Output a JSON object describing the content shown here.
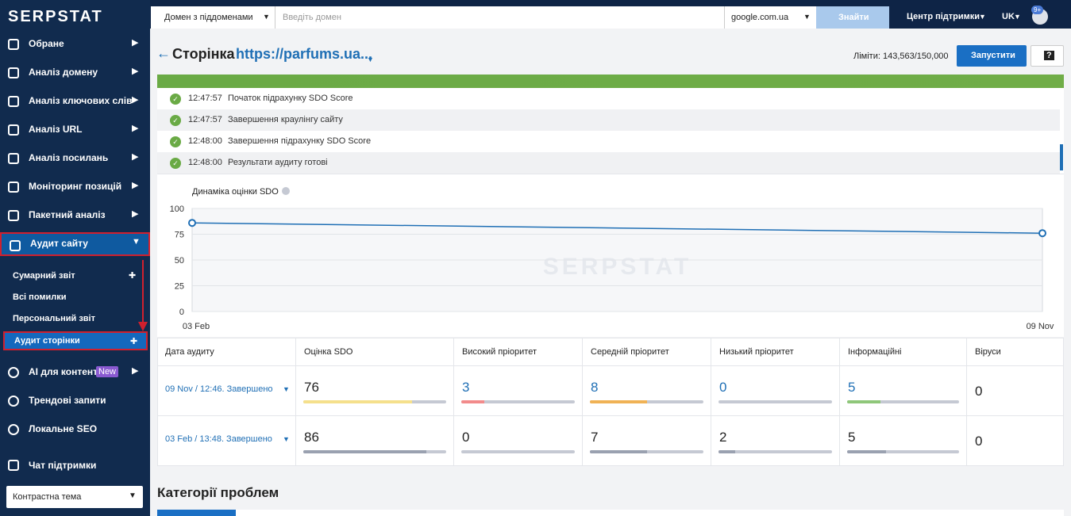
{
  "sidebar": {
    "logo": "SERPSTAT",
    "menu": [
      "Обране",
      "Аналіз домену",
      "Аналіз ключових слів",
      "Аналіз URL",
      "Аналіз посилань",
      "Моніторинг позицій",
      "Пакетний аналіз",
      "Аудит сайту"
    ],
    "submenu": [
      "Сумарний звіт",
      "Всі помилки",
      "Персональний звіт",
      "Аудит сторінки"
    ],
    "menu2": [
      "AI для контенту",
      "Трендові запити",
      "Локальне SEO"
    ],
    "new_badge": "New",
    "support_chat": "Чат підтримки",
    "theme": "Контрастна тема"
  },
  "topbar": {
    "domain_select": "Домен з піддоменами",
    "search_placeholder": "Введіть домен",
    "engine": "google.com.ua",
    "search_button": "Знайти",
    "support": "Центр підтримки",
    "lang": "UK",
    "badge": "9+"
  },
  "page": {
    "title": "Сторінка",
    "url": "https://parfums.ua...",
    "limits": "Ліміти: 143,563/150,000",
    "run": "Запустити",
    "help": "?"
  },
  "log": [
    {
      "time": "12:47:57",
      "text": "Початок підрахунку SDO Score"
    },
    {
      "time": "12:47:57",
      "text": "Завершення краулінгу сайту"
    },
    {
      "time": "12:48:00",
      "text": "Завершення підрахунку SDO Score"
    },
    {
      "time": "12:48:00",
      "text": "Результати аудиту готові"
    }
  ],
  "chart": {
    "type": "line",
    "title": "Динаміка оцінки SDO",
    "watermark": "SERPSTAT",
    "x": [
      "03 Feb",
      "09 Nov"
    ],
    "values": [
      86,
      76
    ],
    "color": "#1f6fb5",
    "ylim": [
      0,
      100
    ],
    "yticks": [
      0,
      25,
      50,
      75,
      100
    ],
    "grid": true
  },
  "table": {
    "headers": [
      "Дата аудиту",
      "Оцінка SDO",
      "Високий пріоритет",
      "Середній пріоритет",
      "Низький пріоритет",
      "Інформаційні",
      "Віруси"
    ],
    "rows": [
      {
        "date": "09 Nov / 12:46. Завершено",
        "cells": [
          76,
          3,
          8,
          0,
          5,
          0
        ]
      },
      {
        "date": "03 Feb / 13:48. Завершено",
        "cells": [
          86,
          0,
          7,
          2,
          5,
          0
        ]
      }
    ]
  },
  "section_title": "Категорії проблем"
}
